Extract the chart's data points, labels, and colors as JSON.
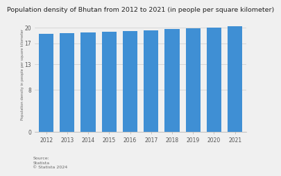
{
  "title": "Population density of Bhutan from 2012 to 2021 (in people per square kilometer)",
  "years": [
    "2012",
    "2013",
    "2014",
    "2015",
    "2016",
    "2017",
    "2018",
    "2019",
    "2020",
    "2021"
  ],
  "values": [
    18.84,
    18.96,
    19.09,
    19.22,
    19.36,
    19.51,
    19.67,
    19.84,
    20.01,
    20.19
  ],
  "bar_color": "#3f8fd4",
  "ylim": [
    0,
    22
  ],
  "yticks": [
    0,
    8,
    13,
    17,
    20
  ],
  "yticklabels": [
    "0",
    "8",
    "13",
    "17",
    "20"
  ],
  "ylabel": "Population density in people per square kilometer",
  "background_color": "#f0f0f0",
  "plot_background": "#f0f0f0",
  "source_text": "Source:\nStatista\n© Statista 2024",
  "title_fontsize": 6.8,
  "axis_fontsize": 5.5,
  "source_fontsize": 4.5
}
